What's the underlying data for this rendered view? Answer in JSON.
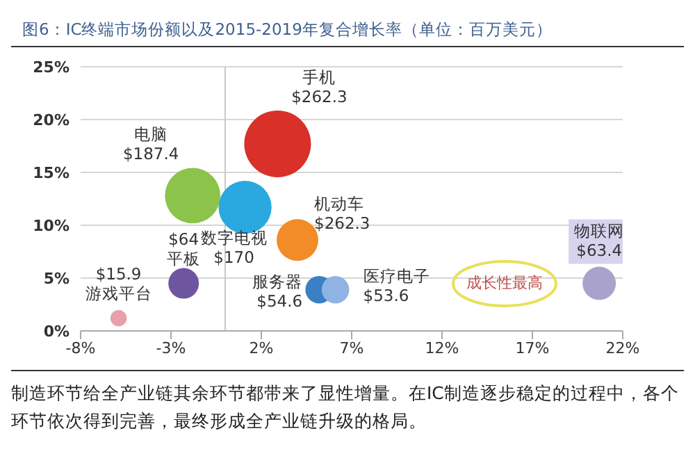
{
  "chart_data": {
    "type": "bubble",
    "title": "图6：IC终端市场份额以及2015-2019年复合增长率（单位：百万美元）",
    "xlim": [
      -8,
      22
    ],
    "xticks": [
      {
        "value": -8,
        "label": "-8%"
      },
      {
        "value": -3,
        "label": "-3%"
      },
      {
        "value": 2,
        "label": "2%"
      },
      {
        "value": 7,
        "label": "7%"
      },
      {
        "value": 12,
        "label": "12%"
      },
      {
        "value": 17,
        "label": "17%"
      },
      {
        "value": 22,
        "label": "22%"
      }
    ],
    "ylim": [
      0,
      25
    ],
    "yticks": [
      {
        "value": 0,
        "label": "0%"
      },
      {
        "value": 5,
        "label": "5%"
      },
      {
        "value": 10,
        "label": "10%"
      },
      {
        "value": 15,
        "label": "15%"
      },
      {
        "value": 20,
        "label": "20%"
      },
      {
        "value": 25,
        "label": "25%"
      }
    ],
    "grid": "y",
    "legend": false,
    "ref_lines": [
      {
        "axis": "x",
        "value": 0,
        "color": "#c8c8c8"
      }
    ],
    "series": [
      {
        "name": "游戏平台",
        "color": "#e8a0aa",
        "x": [
          -5.9
        ],
        "values": [
          1.2
        ],
        "sizes": [
          0.06
        ]
      },
      {
        "name": "平板",
        "color": "#6e55a0",
        "x": [
          -2.3
        ],
        "values": [
          4.5
        ],
        "sizes": [
          0.21
        ]
      },
      {
        "name": "电脑",
        "color": "#8cc34a",
        "x": [
          -1.8
        ],
        "values": [
          12.8
        ],
        "sizes": [
          0.69
        ]
      },
      {
        "name": "数字电视",
        "color": "#29a9e0",
        "x": [
          1.1
        ],
        "values": [
          11.7
        ],
        "sizes": [
          0.63
        ]
      },
      {
        "name": "手机",
        "color": "#d9302a",
        "x": [
          2.9
        ],
        "values": [
          17.7
        ],
        "sizes": [
          1
        ]
      },
      {
        "name": "机动车",
        "color": "#f28c28",
        "x": [
          4.0
        ],
        "values": [
          8.6
        ],
        "sizes": [
          0.39
        ]
      },
      {
        "name": "服务器",
        "color": "#3b7fc4",
        "x": [
          5.2
        ],
        "values": [
          3.9
        ],
        "sizes": [
          0.17
        ]
      },
      {
        "name": "医疗电子",
        "color": "#8fb4e3",
        "x": [
          6.1
        ],
        "values": [
          3.9
        ],
        "sizes": [
          0.17
        ]
      },
      {
        "name": "物联网",
        "color": "#a9a3cc",
        "x": [
          20.7
        ],
        "values": [
          4.5
        ],
        "sizes": [
          0.25
        ]
      }
    ],
    "annotations": [
      "成长性最高",
      {
        "text": "$15.9",
        "x": -5.9,
        "y": 1.2
      },
      {
        "text": "$64",
        "x": -2.3,
        "y": 4.5
      },
      {
        "text": "$187.4",
        "x": -1.8,
        "y": 12.8
      },
      {
        "text": "$170",
        "x": 1.1,
        "y": 11.7
      },
      {
        "text": "$262.3",
        "x": 2.9,
        "y": 17.7
      },
      {
        "text": "$262.3",
        "x": 4.0,
        "y": 8.6
      },
      {
        "text": "$54.6",
        "x": 5.2,
        "y": 3.9
      },
      {
        "text": "$53.6",
        "x": 6.1,
        "y": 3.9
      },
      {
        "text": "$63.4",
        "x": 20.7,
        "y": 4.5
      },
      "制造环节给全产业链其余环节都带来了显性增量。在IC制造逐步稳定的过程中，各个环节依次得到完善，最终形成全产业链升级的格局。"
    ]
  }
}
